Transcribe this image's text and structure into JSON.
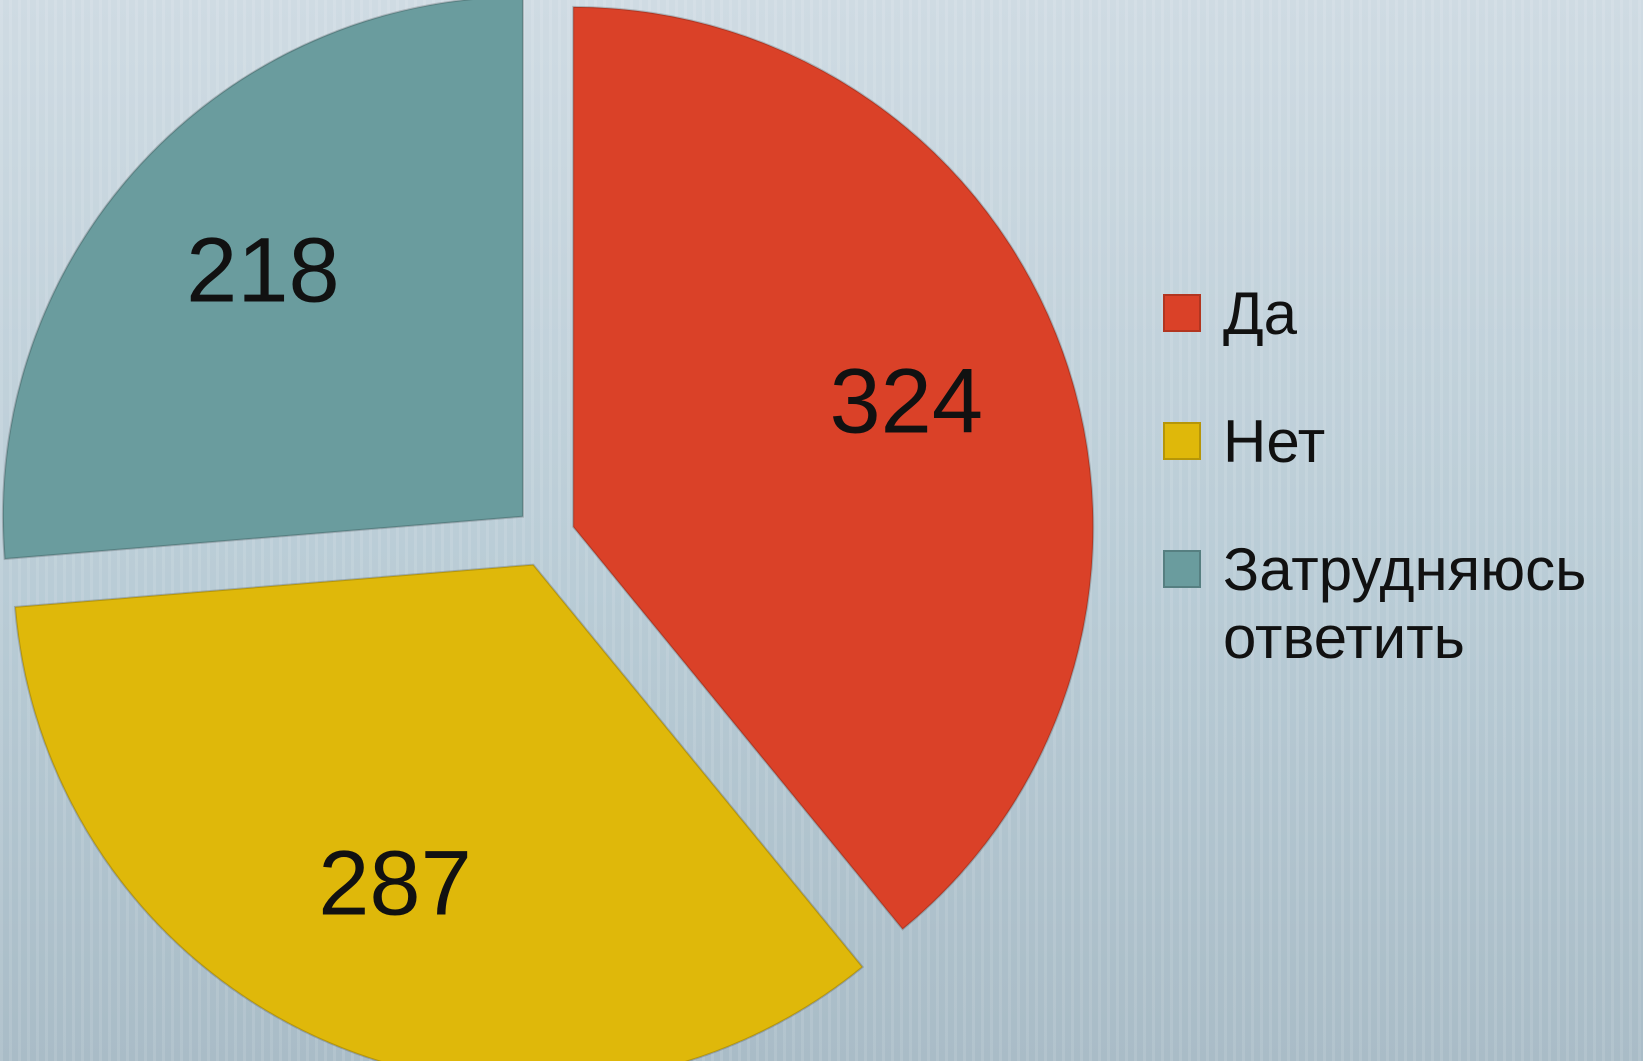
{
  "chart_data": {
    "type": "pie",
    "categories": [
      "Да",
      "Нет",
      "Затрудняюсь ответить"
    ],
    "values": [
      324,
      287,
      218
    ],
    "colors": [
      "#da4128",
      "#dfb80a",
      "#6a9c9e"
    ],
    "legend": "right"
  }
}
